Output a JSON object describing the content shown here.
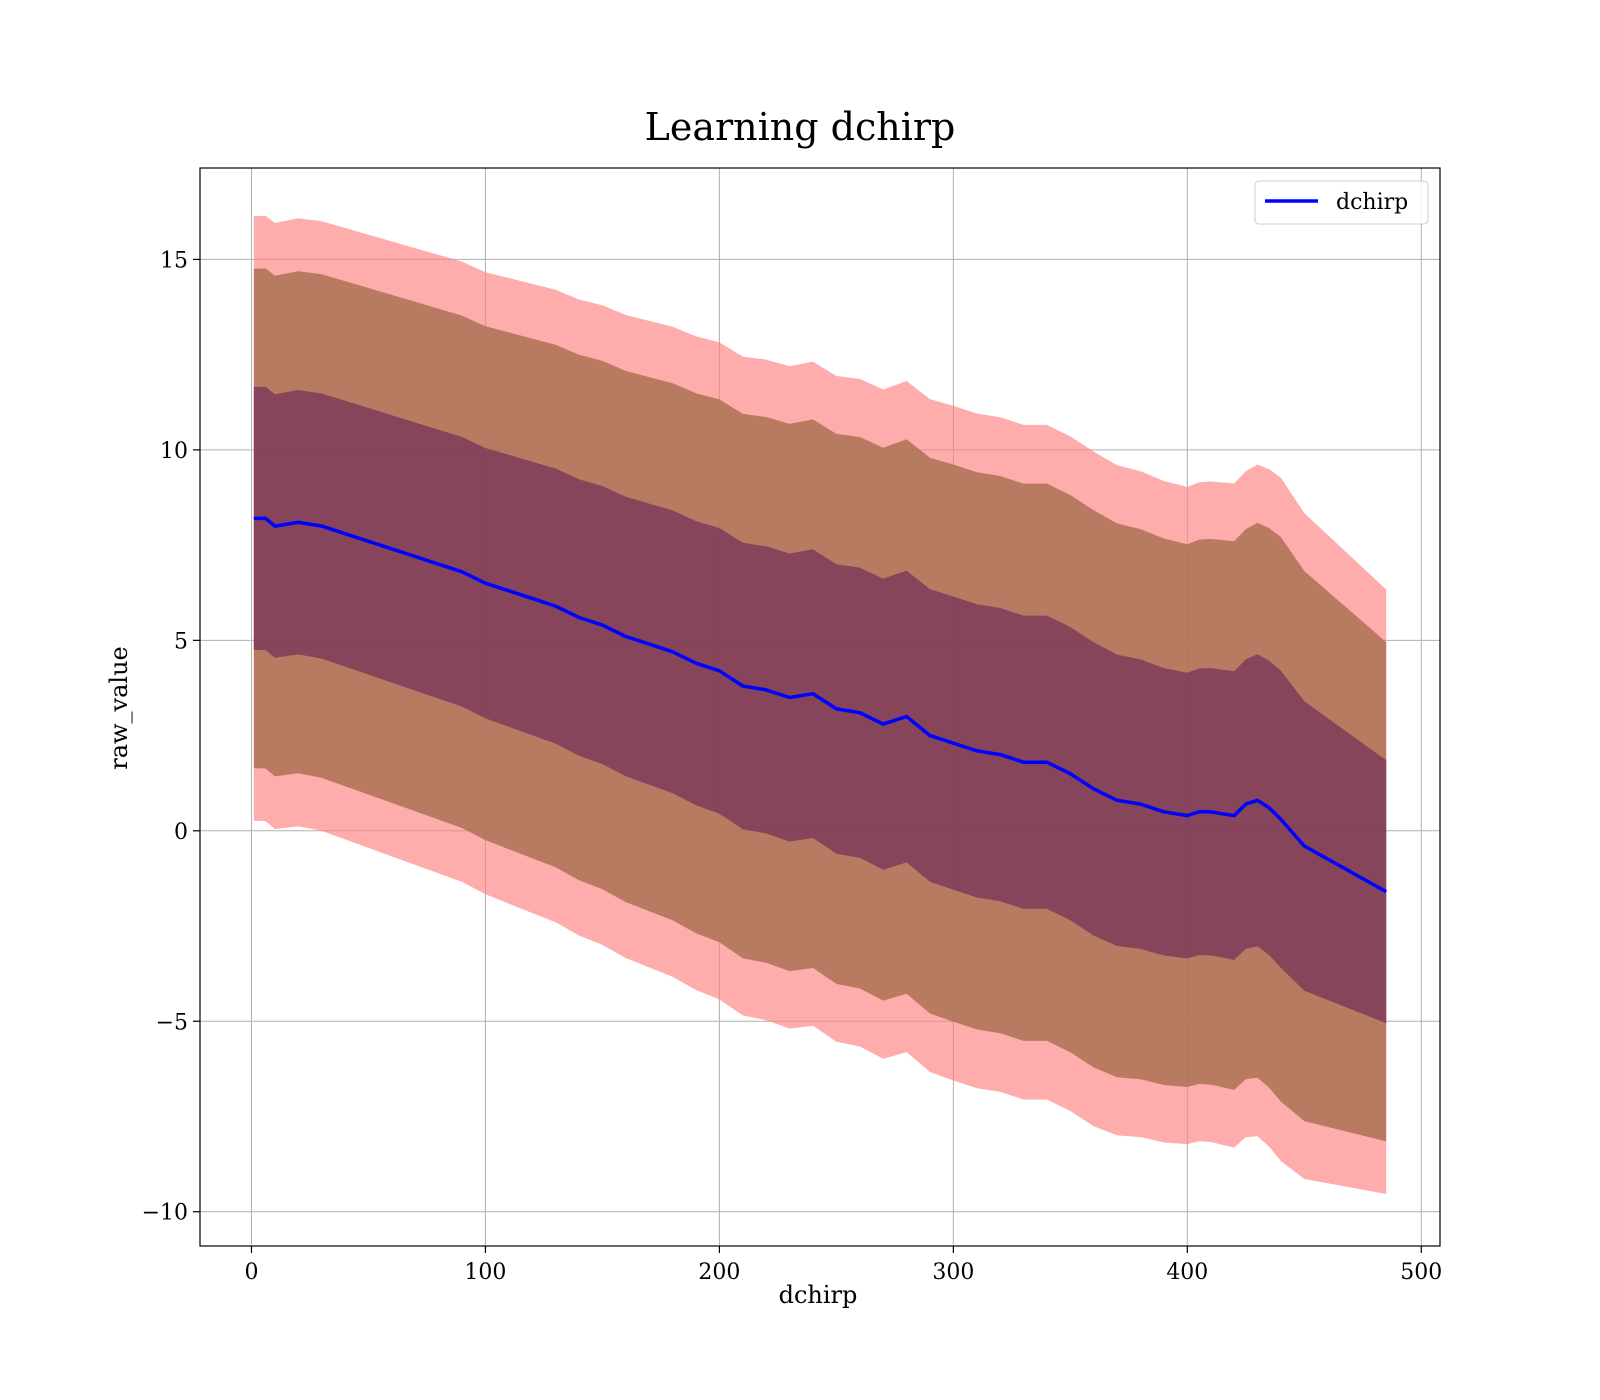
{
  "chart_data": {
    "type": "area",
    "title": "Learning dchirp",
    "xlabel": "dchirp",
    "ylabel": "raw_value",
    "xlim": [
      -22,
      508
    ],
    "ylim": [
      -10.9,
      17.4
    ],
    "xticks": [
      0,
      100,
      200,
      300,
      400,
      500
    ],
    "xtick_labels": [
      "0",
      "100",
      "200",
      "300",
      "400",
      "500"
    ],
    "yticks": [
      -10,
      -5,
      0,
      5,
      10,
      15
    ],
    "ytick_labels": [
      "−10",
      "−5",
      "0",
      "5",
      "10",
      "15"
    ],
    "grid": true,
    "legend": {
      "position": "top-right",
      "entries": [
        "dchirp"
      ]
    },
    "colors": {
      "line": "#0000ff",
      "band_outer": "#ff8080",
      "band_middle": "#a66f4f",
      "band_inner": "#7d3c5a"
    },
    "series": [
      {
        "name": "dchirp",
        "x": [
          1,
          6,
          10,
          20,
          30,
          40,
          50,
          60,
          70,
          80,
          90,
          100,
          110,
          120,
          130,
          140,
          150,
          160,
          170,
          180,
          190,
          200,
          210,
          220,
          230,
          240,
          250,
          260,
          270,
          280,
          290,
          300,
          310,
          320,
          330,
          340,
          350,
          360,
          370,
          380,
          390,
          400,
          405,
          410,
          420,
          425,
          430,
          435,
          440,
          450,
          485
        ],
        "y": [
          8.2,
          8.2,
          8.0,
          8.1,
          8.0,
          7.8,
          7.6,
          7.4,
          7.2,
          7.0,
          6.8,
          6.5,
          6.3,
          6.1,
          5.9,
          5.6,
          5.4,
          5.1,
          4.9,
          4.7,
          4.4,
          4.2,
          3.8,
          3.7,
          3.5,
          3.6,
          3.2,
          3.1,
          2.8,
          3.0,
          2.5,
          2.3,
          2.1,
          2.0,
          1.8,
          1.8,
          1.5,
          1.1,
          0.8,
          0.7,
          0.5,
          0.4,
          0.5,
          0.5,
          0.4,
          0.7,
          0.8,
          0.6,
          0.3,
          -0.4,
          -1.6
        ]
      }
    ],
    "bands": [
      {
        "k": 2.3,
        "role": "outer"
      },
      {
        "k": 1.9,
        "role": "middle"
      },
      {
        "k": 1.0,
        "role": "inner"
      }
    ],
    "band_widths": {
      "x": [
        1,
        100,
        200,
        300,
        360,
        400,
        425,
        440,
        485
      ],
      "sd": [
        3.45,
        3.55,
        3.75,
        3.85,
        3.85,
        3.75,
        3.8,
        3.9,
        3.45
      ]
    }
  }
}
